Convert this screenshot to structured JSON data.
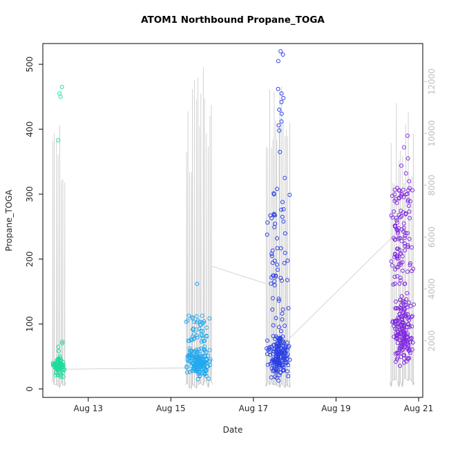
{
  "chart_data": {
    "type": "scatter",
    "title": "ATOM1 Northbound Propane_TOGA",
    "xlabel": "Date",
    "ylabel": "Propane_TOGA",
    "x_ticks": [
      "Aug 13",
      "Aug 15",
      "Aug 17",
      "Aug 19",
      "Aug 21"
    ],
    "x_tick_days": [
      13,
      15,
      17,
      19,
      21
    ],
    "xlim": [
      11.9,
      21.1
    ],
    "y_ticks": [
      0,
      100,
      200,
      300,
      400,
      500
    ],
    "ylim": [
      -13,
      532
    ],
    "y2_ticks": [
      2000,
      4000,
      6000,
      8000,
      10000,
      12000
    ],
    "y2lim": [
      -187,
      13467
    ],
    "grid": false,
    "legend": "none",
    "seed": 42,
    "colors": {
      "title_text": "#000000",
      "axis_text": "#262626",
      "right_axis_text": "#bdbdbd",
      "trace_line": "#c9c9c9",
      "box": "#000000",
      "background": "#ffffff"
    },
    "trace_connectors": [
      {
        "from_day": 12.46,
        "from_alt": 900,
        "to_day": 15.36,
        "to_alt": 950
      },
      {
        "from_day": 15.98,
        "from_alt": 4880,
        "to_day": 17.31,
        "to_alt": 4200
      },
      {
        "from_day": 17.88,
        "from_alt": 2100,
        "to_day": 20.33,
        "to_alt": 5950
      }
    ],
    "clusters": [
      {
        "name": "flight-aug12",
        "color": "#21db9a",
        "day_min": 12.12,
        "day_max": 12.45,
        "n_points": 90,
        "low_band": [
          15,
          55
        ],
        "frac_low": 0.97,
        "mid_band": [
          55,
          75
        ],
        "outliers": [
          465,
          455,
          450,
          383
        ],
        "spikes": {
          "count": 8,
          "peak_min": 8000,
          "peak_max": 11800,
          "base": 400
        }
      },
      {
        "name": "flight-aug15",
        "color": "#22a9f0",
        "day_min": 15.35,
        "day_max": 16.0,
        "n_points": 200,
        "low_band": [
          10,
          70
        ],
        "frac_low": 0.78,
        "mid_band": [
          70,
          115
        ],
        "outliers": [
          162
        ],
        "spikes": {
          "count": 16,
          "peak_min": 8500,
          "peak_max": 12800,
          "base": 300
        }
      },
      {
        "name": "flight-aug17",
        "color": "#2a3fe4",
        "day_min": 17.3,
        "day_max": 17.89,
        "n_points": 220,
        "low_band": [
          8,
          95
        ],
        "frac_low": 0.7,
        "mid_band": [
          95,
          310
        ],
        "outliers": [
          520,
          515,
          505,
          462,
          455,
          448,
          442,
          430,
          424,
          412,
          406,
          398,
          365,
          325
        ],
        "spikes": {
          "count": 16,
          "peak_min": 9000,
          "peak_max": 12900,
          "base": 300
        }
      },
      {
        "name": "flight-aug20",
        "color": "#8028e0",
        "day_min": 20.31,
        "day_max": 20.9,
        "n_points": 280,
        "low_band": [
          15,
          160
        ],
        "frac_low": 0.62,
        "mid_band": [
          160,
          310
        ],
        "outliers": [
          390,
          372,
          355,
          344,
          332,
          320
        ],
        "spikes": {
          "count": 13,
          "peak_min": 8000,
          "peak_max": 11400,
          "base": 400
        }
      }
    ]
  }
}
